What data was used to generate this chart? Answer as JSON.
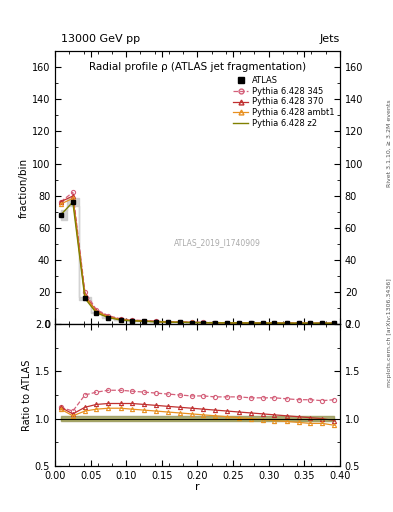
{
  "title_top": "13000 GeV pp",
  "title_top_right": "Jets",
  "plot_title": "Radial profile ρ (ATLAS jet fragmentation)",
  "ylabel_main": "fraction/bin",
  "ylabel_ratio": "Ratio to ATLAS",
  "xlabel": "r",
  "right_label_top": "Rivet 3.1.10, ≥ 3.2M events",
  "right_label_bottom": "mcplots.cern.ch [arXiv:1306.3436]",
  "watermark": "ATLAS_2019_I1740909",
  "atlas_label": "ATLAS",
  "ylim_main": [
    0,
    170
  ],
  "ylim_ratio": [
    0.5,
    2.0
  ],
  "xlim": [
    0.0,
    0.4
  ],
  "r_values": [
    0.008,
    0.025,
    0.042,
    0.058,
    0.075,
    0.092,
    0.108,
    0.125,
    0.142,
    0.158,
    0.175,
    0.192,
    0.208,
    0.225,
    0.242,
    0.258,
    0.275,
    0.292,
    0.308,
    0.325,
    0.342,
    0.358,
    0.375,
    0.392
  ],
  "atlas_data": [
    68,
    76,
    16,
    7.0,
    4.0,
    2.5,
    2.0,
    1.7,
    1.4,
    1.2,
    1.05,
    0.95,
    0.85,
    0.78,
    0.72,
    0.67,
    0.63,
    0.6,
    0.57,
    0.55,
    0.53,
    0.51,
    0.5,
    0.48
  ],
  "atlas_err_low": [
    3.0,
    2.5,
    0.8,
    0.4,
    0.3,
    0.15,
    0.12,
    0.1,
    0.08,
    0.07,
    0.06,
    0.05,
    0.05,
    0.04,
    0.04,
    0.03,
    0.03,
    0.03,
    0.03,
    0.02,
    0.02,
    0.02,
    0.02,
    0.02
  ],
  "p345_ratio": [
    1.12,
    1.08,
    1.25,
    1.28,
    1.3,
    1.3,
    1.29,
    1.28,
    1.27,
    1.26,
    1.25,
    1.24,
    1.24,
    1.23,
    1.23,
    1.23,
    1.22,
    1.22,
    1.22,
    1.21,
    1.2,
    1.2,
    1.19,
    1.2
  ],
  "p370_ratio": [
    1.12,
    1.05,
    1.12,
    1.15,
    1.16,
    1.16,
    1.16,
    1.15,
    1.14,
    1.13,
    1.12,
    1.11,
    1.1,
    1.09,
    1.08,
    1.07,
    1.06,
    1.05,
    1.04,
    1.03,
    1.02,
    1.01,
    1.0,
    0.98
  ],
  "pambt1_ratio": [
    1.1,
    1.03,
    1.08,
    1.1,
    1.11,
    1.11,
    1.1,
    1.09,
    1.08,
    1.07,
    1.06,
    1.05,
    1.04,
    1.03,
    1.02,
    1.01,
    1.0,
    0.99,
    0.98,
    0.97,
    0.96,
    0.95,
    0.95,
    0.93
  ],
  "pz2_ratio": [
    1.0,
    1.0,
    1.0,
    1.0,
    1.0,
    1.0,
    1.0,
    1.0,
    1.0,
    1.0,
    1.0,
    1.0,
    1.0,
    1.0,
    1.0,
    1.0,
    1.0,
    1.0,
    1.0,
    1.0,
    1.0,
    1.0,
    1.0,
    1.0
  ],
  "pz2_band_low": [
    0.97,
    0.97,
    0.97,
    0.97,
    0.97,
    0.97,
    0.97,
    0.97,
    0.97,
    0.97,
    0.97,
    0.97,
    0.97,
    0.97,
    0.97,
    0.97,
    0.97,
    0.97,
    0.97,
    0.97,
    0.97,
    0.97,
    0.97,
    0.97
  ],
  "pz2_band_high": [
    1.03,
    1.03,
    1.03,
    1.03,
    1.03,
    1.03,
    1.03,
    1.03,
    1.03,
    1.03,
    1.03,
    1.03,
    1.03,
    1.03,
    1.03,
    1.03,
    1.03,
    1.03,
    1.03,
    1.03,
    1.03,
    1.03,
    1.03,
    1.03
  ],
  "color_p345": "#d4607a",
  "color_p370": "#c03030",
  "color_pambt1": "#e89020",
  "color_pz2": "#808000",
  "color_atlas": "#000000",
  "color_atlas_band": "#c8c8c8",
  "color_atlas_ratio_band": "#bbbbbb"
}
